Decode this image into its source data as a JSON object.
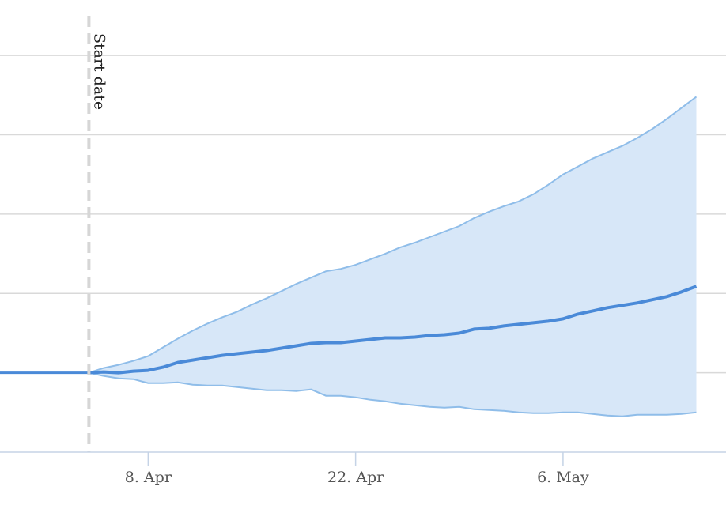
{
  "chart_data": {
    "type": "area",
    "title": "",
    "xlabel": "",
    "ylabel": "",
    "x_ticks": [
      "8. Apr",
      "22. Apr",
      "6. May"
    ],
    "x_tick_dates": [
      "2020-04-08",
      "2020-04-22",
      "2020-05-06"
    ],
    "x_range": [
      "2020-03-29",
      "2020-05-17"
    ],
    "y_range": [
      -1,
      4.5
    ],
    "y_gridlines": [
      -1,
      0,
      1,
      2,
      3,
      4
    ],
    "y_tick_labels_visible": false,
    "grid": true,
    "plot_lines": [
      {
        "date": "2020-04-04",
        "label": "Start date",
        "style": "dashed"
      }
    ],
    "flat_before_start": 0,
    "series": [
      {
        "role": "median",
        "dates": [
          "2020-04-04",
          "2020-04-05",
          "2020-04-06",
          "2020-04-07",
          "2020-04-08",
          "2020-04-09",
          "2020-04-10",
          "2020-04-11",
          "2020-04-12",
          "2020-04-13",
          "2020-04-14",
          "2020-04-15",
          "2020-04-16",
          "2020-04-17",
          "2020-04-18",
          "2020-04-19",
          "2020-04-20",
          "2020-04-21",
          "2020-04-22",
          "2020-04-23",
          "2020-04-24",
          "2020-04-25",
          "2020-04-26",
          "2020-04-27",
          "2020-04-28",
          "2020-04-29",
          "2020-04-30",
          "2020-05-01",
          "2020-05-02",
          "2020-05-03",
          "2020-05-04",
          "2020-05-05",
          "2020-05-06",
          "2020-05-07",
          "2020-05-08",
          "2020-05-09",
          "2020-05-10",
          "2020-05-11",
          "2020-05-12",
          "2020-05-13",
          "2020-05-14",
          "2020-05-15"
        ],
        "values": [
          0,
          0.01,
          0.0,
          0.02,
          0.03,
          0.07,
          0.13,
          0.16,
          0.19,
          0.22,
          0.24,
          0.26,
          0.28,
          0.31,
          0.34,
          0.37,
          0.38,
          0.38,
          0.4,
          0.42,
          0.44,
          0.44,
          0.45,
          0.47,
          0.48,
          0.5,
          0.55,
          0.56,
          0.59,
          0.61,
          0.63,
          0.65,
          0.68,
          0.74,
          0.78,
          0.82,
          0.85,
          0.88,
          0.92,
          0.96,
          1.02,
          1.09
        ]
      },
      {
        "role": "upper",
        "dates": [
          "2020-04-04",
          "2020-04-05",
          "2020-04-06",
          "2020-04-07",
          "2020-04-08",
          "2020-04-09",
          "2020-04-10",
          "2020-04-11",
          "2020-04-12",
          "2020-04-13",
          "2020-04-14",
          "2020-04-15",
          "2020-04-16",
          "2020-04-17",
          "2020-04-18",
          "2020-04-19",
          "2020-04-20",
          "2020-04-21",
          "2020-04-22",
          "2020-04-23",
          "2020-04-24",
          "2020-04-25",
          "2020-04-26",
          "2020-04-27",
          "2020-04-28",
          "2020-04-29",
          "2020-04-30",
          "2020-05-01",
          "2020-05-02",
          "2020-05-03",
          "2020-05-04",
          "2020-05-05",
          "2020-05-06",
          "2020-05-07",
          "2020-05-08",
          "2020-05-09",
          "2020-05-10",
          "2020-05-11",
          "2020-05-12",
          "2020-05-13",
          "2020-05-14",
          "2020-05-15"
        ],
        "values": [
          0,
          0.06,
          0.1,
          0.15,
          0.21,
          0.32,
          0.43,
          0.53,
          0.62,
          0.7,
          0.77,
          0.86,
          0.94,
          1.03,
          1.12,
          1.2,
          1.28,
          1.31,
          1.36,
          1.43,
          1.5,
          1.58,
          1.64,
          1.71,
          1.78,
          1.85,
          1.95,
          2.03,
          2.1,
          2.16,
          2.25,
          2.37,
          2.5,
          2.6,
          2.7,
          2.78,
          2.86,
          2.96,
          3.07,
          3.2,
          3.34,
          3.48
        ]
      },
      {
        "role": "lower",
        "dates": [
          "2020-04-04",
          "2020-04-05",
          "2020-04-06",
          "2020-04-07",
          "2020-04-08",
          "2020-04-09",
          "2020-04-10",
          "2020-04-11",
          "2020-04-12",
          "2020-04-13",
          "2020-04-14",
          "2020-04-15",
          "2020-04-16",
          "2020-04-17",
          "2020-04-18",
          "2020-04-19",
          "2020-04-20",
          "2020-04-21",
          "2020-04-22",
          "2020-04-23",
          "2020-04-24",
          "2020-04-25",
          "2020-04-26",
          "2020-04-27",
          "2020-04-28",
          "2020-04-29",
          "2020-04-30",
          "2020-05-01",
          "2020-05-02",
          "2020-05-03",
          "2020-05-04",
          "2020-05-05",
          "2020-05-06",
          "2020-05-07",
          "2020-05-08",
          "2020-05-09",
          "2020-05-10",
          "2020-05-11",
          "2020-05-12",
          "2020-05-13",
          "2020-05-14",
          "2020-05-15"
        ],
        "values": [
          0,
          -0.04,
          -0.07,
          -0.08,
          -0.13,
          -0.13,
          -0.12,
          -0.15,
          -0.16,
          -0.16,
          -0.18,
          -0.2,
          -0.22,
          -0.22,
          -0.23,
          -0.21,
          -0.29,
          -0.29,
          -0.31,
          -0.34,
          -0.36,
          -0.39,
          -0.41,
          -0.43,
          -0.44,
          -0.43,
          -0.46,
          -0.47,
          -0.48,
          -0.5,
          -0.51,
          -0.51,
          -0.5,
          -0.5,
          -0.52,
          -0.54,
          -0.55,
          -0.53,
          -0.53,
          -0.53,
          -0.52,
          -0.5
        ]
      }
    ]
  },
  "colors": {
    "median": "#4a8ad8",
    "band_fill": "#d7e7f8",
    "bound": "#8fbde9",
    "grid": "#d9d9d9",
    "plot_line": "#d6d6d6"
  }
}
